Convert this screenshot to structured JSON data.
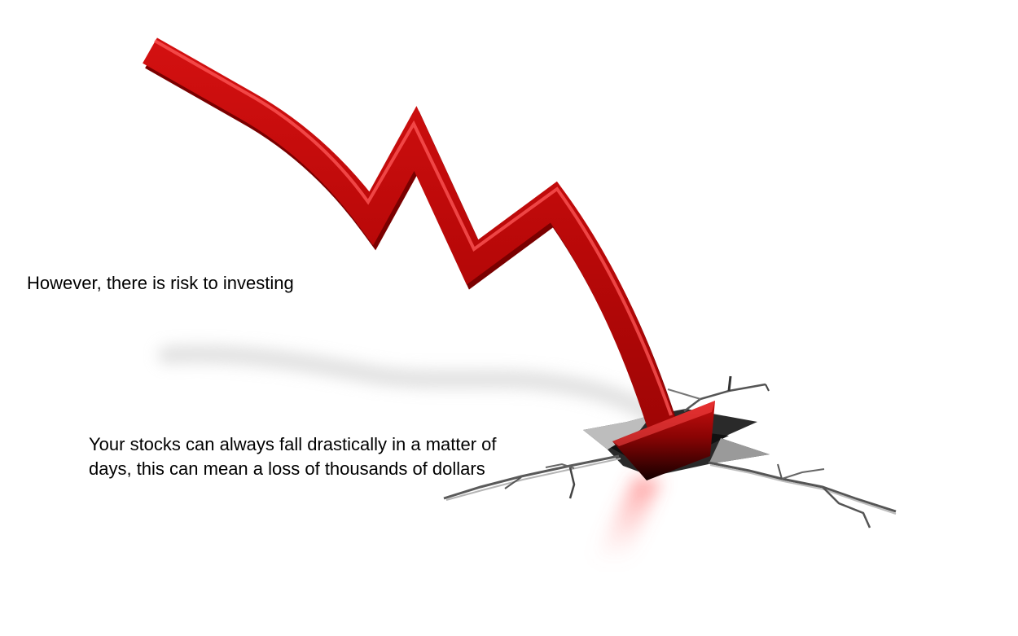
{
  "slide": {
    "caption_primary": "However, there is risk to investing",
    "caption_secondary_line1": "Your stocks can always fall drastically in a matter of",
    "caption_secondary_line2": "days, this can mean a loss of thousands of dollars"
  },
  "illustration": {
    "icon": "falling-arrow-icon",
    "crack_icon": "ground-crack-icon",
    "colors": {
      "arrow_red": "#c00a0a",
      "arrow_dark": "#5a0000",
      "crack_dark": "#2a2a2a",
      "crack_grey": "#8a8a8a",
      "shadow": "#d8d8d8",
      "glow": "#ff4040",
      "background": "#ffffff"
    }
  }
}
